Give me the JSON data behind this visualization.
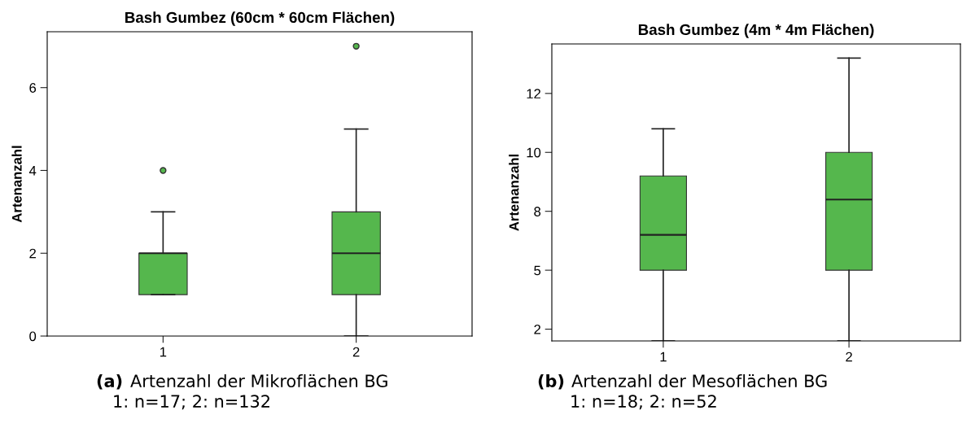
{
  "chart_data": [
    {
      "type": "box",
      "title": "Bash Gumbez (60cm * 60cm Flächen)",
      "ylabel": "Artenanzahl",
      "categories": [
        "1",
        "2"
      ],
      "color": "#55b74d",
      "boxes": [
        {
          "low": 1,
          "q1": 1,
          "median": 2,
          "q3": 2,
          "high": 3,
          "outliers": [
            4
          ]
        },
        {
          "low": 0,
          "q1": 1,
          "median": 2,
          "q3": 3,
          "high": 5,
          "outliers": [
            7
          ]
        }
      ],
      "ylim": [
        0,
        7.35
      ],
      "yticks": [
        0,
        2,
        4,
        6
      ],
      "grid": false,
      "annotations": [
        "(a)",
        "Artenzahl der Mikroflächen BG",
        "1: n=17; 2: n=132"
      ]
    },
    {
      "type": "box",
      "title": "Bash Gumbez (4m * 4m Flächen)",
      "ylabel": "Artenanzahl",
      "categories": [
        "1",
        "2"
      ],
      "color": "#55b74d",
      "boxes": [
        {
          "low": 2,
          "q1": 5,
          "median": 6.5,
          "q3": 9,
          "high": 11
        },
        {
          "low": 2,
          "q1": 5,
          "median": 8,
          "q3": 10,
          "high": 14
        }
      ],
      "ylim": [
        2,
        14.6
      ],
      "yticks": [
        {
          "value": 2.5,
          "label": "2"
        },
        5,
        {
          "value": 7.5,
          "label": "8"
        },
        10,
        {
          "value": 12.5,
          "label": "12"
        }
      ],
      "grid": false,
      "annotations": [
        "(b)",
        "Artenzahl der Mesoflächen BG",
        "1: n=18; 2: n=52"
      ]
    }
  ]
}
